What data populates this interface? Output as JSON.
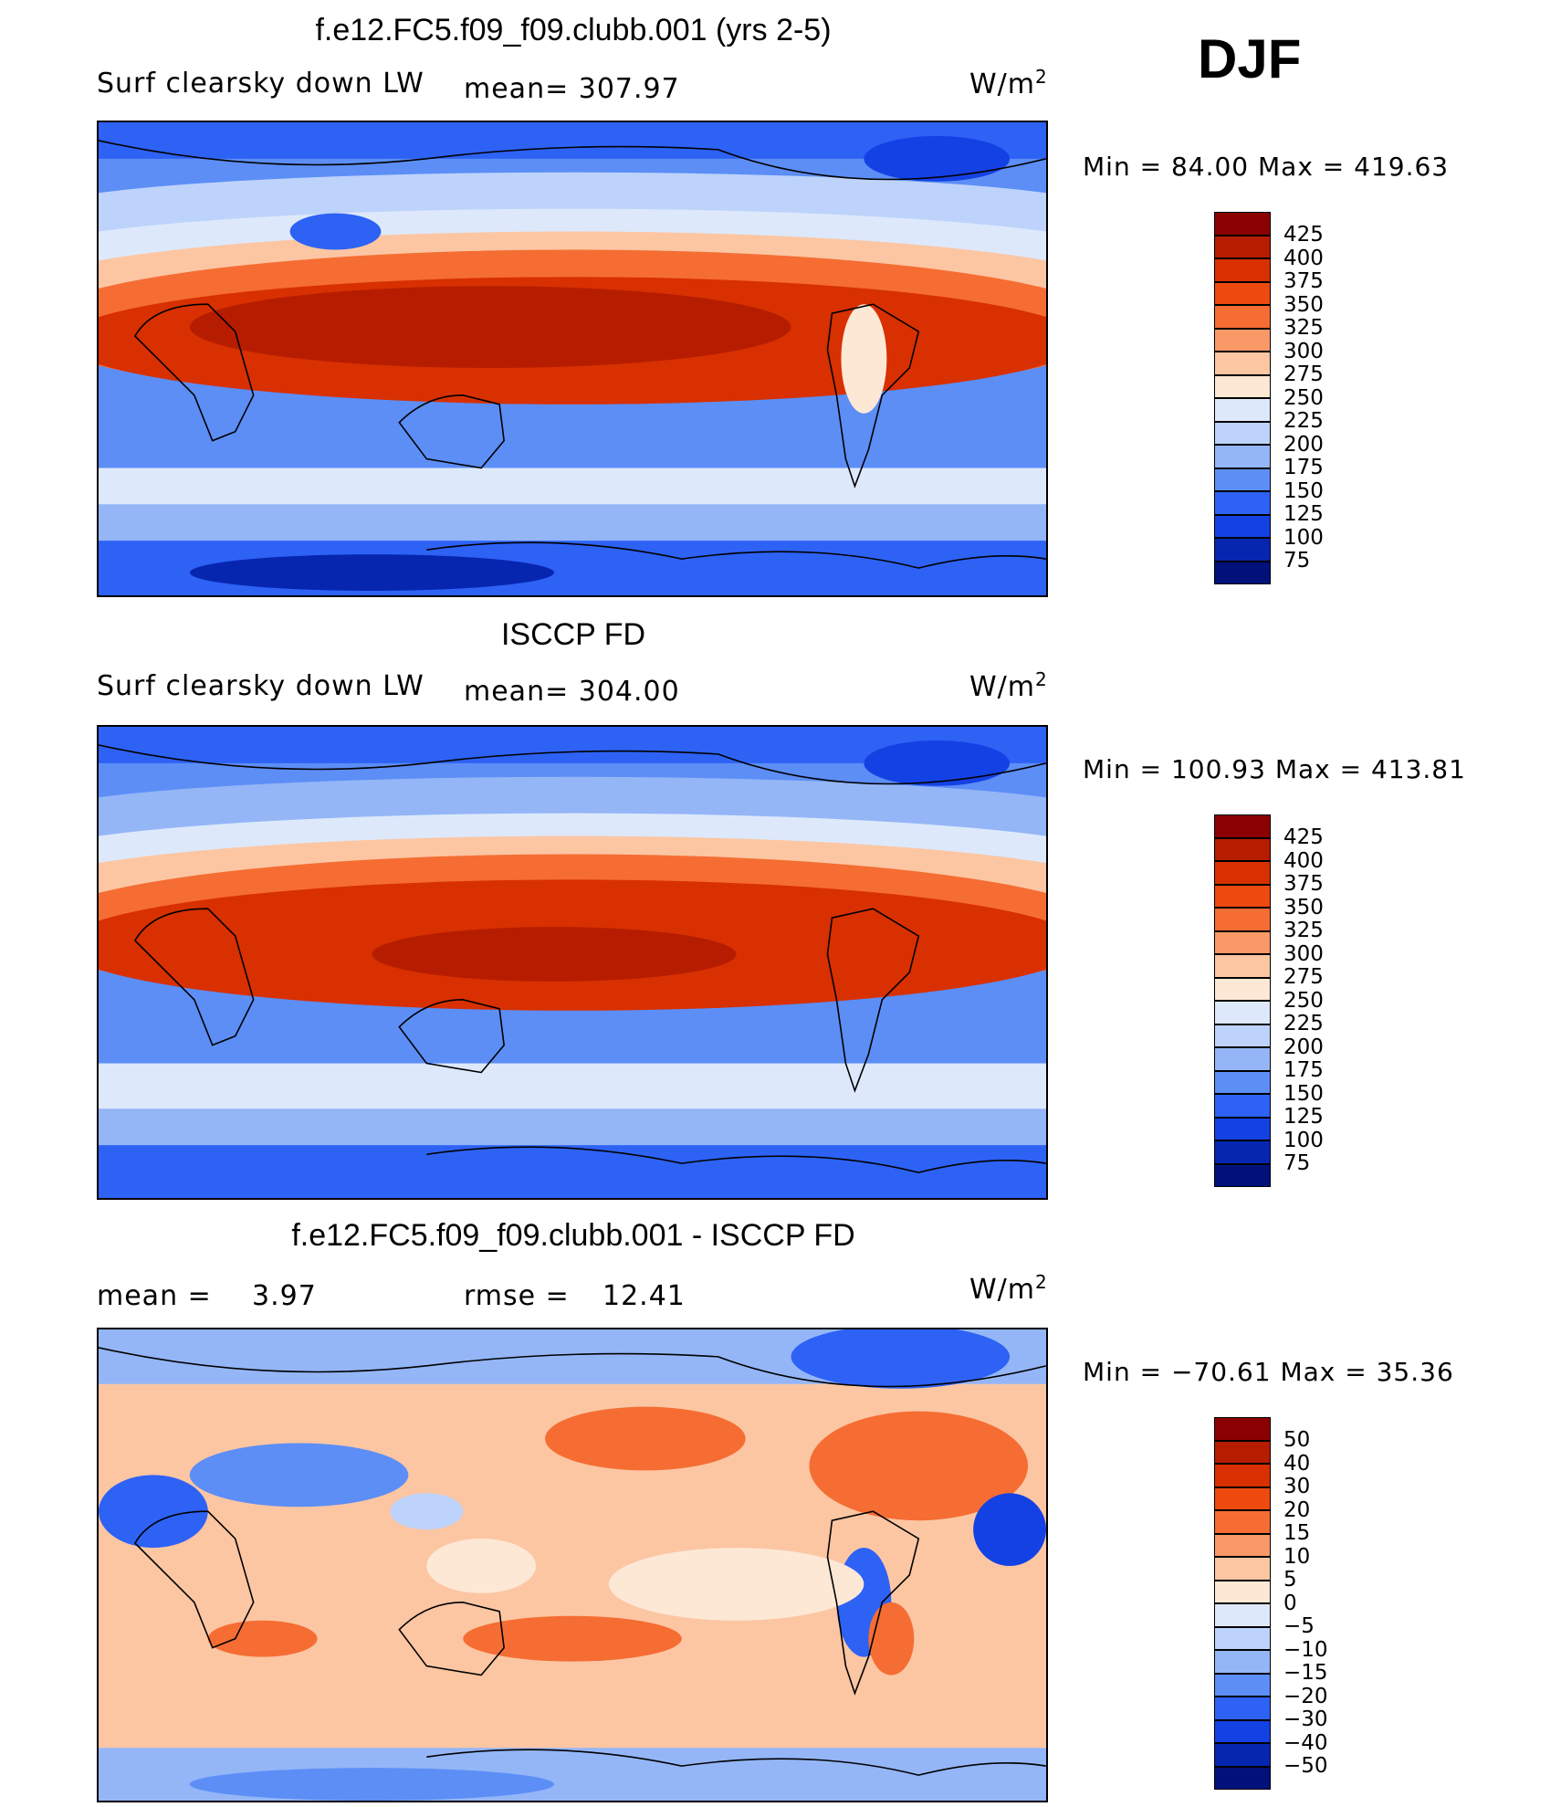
{
  "season": "DJF",
  "panels": [
    {
      "title": "f.e12.FC5.f09_f09.clubb.001 (yrs 2-5)",
      "left_label": "Surf clearsky down LW",
      "center_label": "mean=  307.97",
      "units": "W/m",
      "units_exp": "2",
      "minmax": "Min  =    84.00  Max  =  419.63"
    },
    {
      "title": "ISCCP FD",
      "left_label": "Surf clearsky down LW",
      "center_label": "mean=  304.00",
      "units": "W/m",
      "units_exp": "2",
      "minmax": "Min  =  100.93  Max  =  413.81"
    },
    {
      "title": "f.e12.FC5.f09_f09.clubb.001 - ISCCP FD",
      "left_label": "mean  =",
      "left_value": "3.97",
      "center_label": "rmse  =",
      "center_value": "12.41",
      "units": "W/m",
      "units_exp": "2",
      "minmax": "Min  = −70.61  Max  =    35.36"
    }
  ],
  "chart_data": [
    {
      "type": "heatmap",
      "title": "f.e12.FC5.f09_f09.clubb.001 (yrs 2-5)",
      "variable": "Surf clearsky down LW",
      "units": "W/m2",
      "mean": 307.97,
      "min": 84.0,
      "max": 419.63,
      "colorbar_levels": [
        "425",
        "400",
        "375",
        "350",
        "325",
        "300",
        "275",
        "250",
        "225",
        "200",
        "175",
        "150",
        "125",
        "100",
        "75"
      ],
      "colors": [
        "#8b0000",
        "#b61d00",
        "#d83000",
        "#ee4a10",
        "#f56d33",
        "#fa9968",
        "#fcc6a3",
        "#fde8d6",
        "#dde9fb",
        "#bdd3fb",
        "#94b6f7",
        "#5c8ef6",
        "#2d62f5",
        "#1441e4",
        "#0726b0",
        "#00127a"
      ]
    },
    {
      "type": "heatmap",
      "title": "ISCCP FD",
      "variable": "Surf clearsky down LW",
      "units": "W/m2",
      "mean": 304.0,
      "min": 100.93,
      "max": 413.81,
      "colorbar_levels": [
        "425",
        "400",
        "375",
        "350",
        "325",
        "300",
        "275",
        "250",
        "225",
        "200",
        "175",
        "150",
        "125",
        "100",
        "75"
      ],
      "colors": [
        "#8b0000",
        "#b61d00",
        "#d83000",
        "#ee4a10",
        "#f56d33",
        "#fa9968",
        "#fcc6a3",
        "#fde8d6",
        "#dde9fb",
        "#bdd3fb",
        "#94b6f7",
        "#5c8ef6",
        "#2d62f5",
        "#1441e4",
        "#0726b0",
        "#00127a"
      ]
    },
    {
      "type": "heatmap",
      "title": "f.e12.FC5.f09_f09.clubb.001 - ISCCP FD",
      "units": "W/m2",
      "mean": 3.97,
      "rmse": 12.41,
      "min": -70.61,
      "max": 35.36,
      "colorbar_levels": [
        "50",
        "40",
        "30",
        "20",
        "15",
        "10",
        "5",
        "0",
        "−5",
        "−10",
        "−15",
        "−20",
        "−30",
        "−40",
        "−50"
      ],
      "colors": [
        "#8b0000",
        "#b61d00",
        "#d83000",
        "#ee4a10",
        "#f56d33",
        "#fa9968",
        "#fcc6a3",
        "#fde8d6",
        "#dde9fb",
        "#bdd3fb",
        "#94b6f7",
        "#5c8ef6",
        "#2d62f5",
        "#1441e4",
        "#0726b0",
        "#00127a"
      ]
    }
  ]
}
